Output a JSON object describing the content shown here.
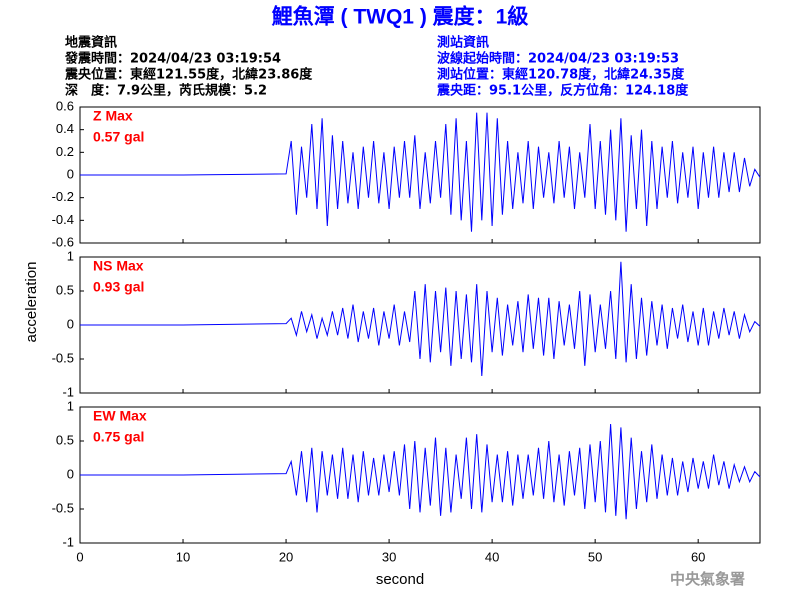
{
  "title": "鯉魚潭 ( TWQ1 ) 震度：1級",
  "event_info": [
    "地震資訊",
    "發震時間：2024/04/23 03:19:54",
    "震央位置：東經121.55度，北緯23.86度",
    "深　度：7.9公里，芮氏規模：5.2"
  ],
  "station_info": [
    "測站資訊",
    "波線起始時間：2024/04/23 03:19:53",
    "測站位置：東經120.78度，北緯24.35度",
    "震央距：95.1公里，反方位角：124.18度"
  ],
  "ylabel": "acceleration",
  "xlabel": "second",
  "footer": "中央氣象署",
  "chart_data": [
    {
      "type": "line",
      "label": "Z Max",
      "max_label": "0.57 gal",
      "color": "#0000ff",
      "label_color": "#ff0000",
      "xlim": [
        0,
        66
      ],
      "xticks": [
        0,
        10,
        20,
        30,
        40,
        50,
        60
      ],
      "ylim": [
        -0.6,
        0.6
      ],
      "yticks": [
        -0.6,
        -0.4,
        -0.2,
        0,
        0.2,
        0.4,
        0.6
      ],
      "x": [
        0,
        10,
        20,
        20.5,
        21,
        21.5,
        22,
        22.5,
        23,
        23.5,
        24,
        24.5,
        25,
        25.5,
        26,
        26.5,
        27,
        27.5,
        28,
        28.5,
        29,
        29.5,
        30,
        30.5,
        31,
        31.5,
        32,
        32.5,
        33,
        33.5,
        34,
        34.5,
        35,
        35.5,
        36,
        36.5,
        37,
        37.5,
        38,
        38.5,
        39,
        39.5,
        40,
        40.5,
        41,
        41.5,
        42,
        42.5,
        43,
        43.5,
        44,
        44.5,
        45,
        45.5,
        46,
        46.5,
        47,
        47.5,
        48,
        48.5,
        49,
        49.5,
        50,
        50.5,
        51,
        51.5,
        52,
        52.5,
        53,
        53.5,
        54,
        54.5,
        55,
        55.5,
        56,
        56.5,
        57,
        57.5,
        58,
        58.5,
        59,
        59.5,
        60,
        60.5,
        61,
        61.5,
        62,
        62.5,
        63,
        63.5,
        64,
        64.5,
        65,
        65.5,
        66
      ],
      "values": [
        0,
        0,
        0.01,
        0.3,
        -0.35,
        0.25,
        -0.2,
        0.45,
        -0.3,
        0.5,
        -0.45,
        0.35,
        -0.3,
        0.3,
        -0.25,
        0.2,
        -0.3,
        0.25,
        -0.2,
        0.3,
        -0.25,
        0.2,
        -0.3,
        0.25,
        -0.2,
        0.3,
        -0.2,
        0.35,
        -0.3,
        0.2,
        -0.25,
        0.3,
        -0.2,
        0.45,
        -0.35,
        0.5,
        -0.4,
        0.3,
        -0.5,
        0.55,
        -0.4,
        0.55,
        -0.45,
        0.5,
        -0.35,
        0.3,
        -0.3,
        0.2,
        -0.25,
        0.3,
        -0.3,
        0.25,
        -0.2,
        0.2,
        -0.25,
        0.3,
        -0.2,
        0.25,
        -0.3,
        0.2,
        -0.2,
        0.45,
        -0.3,
        0.3,
        -0.35,
        0.4,
        -0.4,
        0.5,
        -0.5,
        0.35,
        -0.3,
        0.4,
        -0.45,
        0.3,
        -0.3,
        0.25,
        -0.2,
        0.3,
        -0.25,
        0.2,
        -0.2,
        0.25,
        -0.3,
        0.2,
        -0.2,
        0.25,
        -0.2,
        0.2,
        -0.15,
        0.2,
        -0.15,
        0.15,
        -0.1,
        0.05,
        -0.02
      ]
    },
    {
      "type": "line",
      "label": "NS Max",
      "max_label": "0.93 gal",
      "color": "#0000ff",
      "label_color": "#ff0000",
      "xlim": [
        0,
        66
      ],
      "xticks": [
        0,
        10,
        20,
        30,
        40,
        50,
        60
      ],
      "ylim": [
        -1,
        1
      ],
      "yticks": [
        -1,
        -0.5,
        0,
        0.5,
        1
      ],
      "x": [
        0,
        10,
        20,
        20.5,
        21,
        21.5,
        22,
        22.5,
        23,
        23.5,
        24,
        24.5,
        25,
        25.5,
        26,
        26.5,
        27,
        27.5,
        28,
        28.5,
        29,
        29.5,
        30,
        30.5,
        31,
        31.5,
        32,
        32.5,
        33,
        33.5,
        34,
        34.5,
        35,
        35.5,
        36,
        36.5,
        37,
        37.5,
        38,
        38.5,
        39,
        39.5,
        40,
        40.5,
        41,
        41.5,
        42,
        42.5,
        43,
        43.5,
        44,
        44.5,
        45,
        45.5,
        46,
        46.5,
        47,
        47.5,
        48,
        48.5,
        49,
        49.5,
        50,
        50.5,
        51,
        51.5,
        52,
        52.5,
        53,
        53.5,
        54,
        54.5,
        55,
        55.5,
        56,
        56.5,
        57,
        57.5,
        58,
        58.5,
        59,
        59.5,
        60,
        60.5,
        61,
        61.5,
        62,
        62.5,
        63,
        63.5,
        64,
        64.5,
        65,
        65.5,
        66
      ],
      "values": [
        0,
        0,
        0.02,
        0.1,
        -0.15,
        0.2,
        -0.1,
        0.15,
        -0.2,
        0.1,
        -0.15,
        0.2,
        -0.15,
        0.25,
        -0.2,
        0.3,
        -0.25,
        0.2,
        -0.2,
        0.25,
        -0.3,
        0.2,
        -0.2,
        0.3,
        -0.3,
        0.2,
        -0.25,
        0.5,
        -0.5,
        0.6,
        -0.55,
        0.5,
        -0.4,
        0.55,
        -0.6,
        0.5,
        -0.5,
        0.45,
        -0.55,
        0.6,
        -0.75,
        0.5,
        -0.4,
        0.4,
        -0.45,
        0.3,
        -0.3,
        0.35,
        -0.4,
        0.45,
        -0.35,
        0.4,
        -0.45,
        0.4,
        -0.5,
        0.35,
        -0.3,
        0.3,
        -0.35,
        0.5,
        -0.6,
        0.45,
        -0.4,
        0.3,
        -0.35,
        0.5,
        -0.5,
        0.93,
        -0.55,
        0.6,
        -0.5,
        0.4,
        -0.45,
        0.35,
        -0.3,
        0.3,
        -0.35,
        0.25,
        -0.2,
        0.3,
        -0.25,
        0.2,
        -0.3,
        0.25,
        -0.3,
        0.2,
        -0.2,
        0.25,
        -0.15,
        0.2,
        -0.2,
        0.15,
        -0.1,
        0.05,
        -0.02
      ]
    },
    {
      "type": "line",
      "label": "EW Max",
      "max_label": "0.75 gal",
      "color": "#0000ff",
      "label_color": "#ff0000",
      "xlim": [
        0,
        66
      ],
      "xticks": [
        0,
        10,
        20,
        30,
        40,
        50,
        60
      ],
      "ylim": [
        -1,
        1
      ],
      "yticks": [
        -1,
        -0.5,
        0,
        0.5,
        1
      ],
      "x": [
        0,
        10,
        20,
        20.5,
        21,
        21.5,
        22,
        22.5,
        23,
        23.5,
        24,
        24.5,
        25,
        25.5,
        26,
        26.5,
        27,
        27.5,
        28,
        28.5,
        29,
        29.5,
        30,
        30.5,
        31,
        31.5,
        32,
        32.5,
        33,
        33.5,
        34,
        34.5,
        35,
        35.5,
        36,
        36.5,
        37,
        37.5,
        38,
        38.5,
        39,
        39.5,
        40,
        40.5,
        41,
        41.5,
        42,
        42.5,
        43,
        43.5,
        44,
        44.5,
        45,
        45.5,
        46,
        46.5,
        47,
        47.5,
        48,
        48.5,
        49,
        49.5,
        50,
        50.5,
        51,
        51.5,
        52,
        52.5,
        53,
        53.5,
        54,
        54.5,
        55,
        55.5,
        56,
        56.5,
        57,
        57.5,
        58,
        58.5,
        59,
        59.5,
        60,
        60.5,
        61,
        61.5,
        62,
        62.5,
        63,
        63.5,
        64,
        64.5,
        65,
        65.5,
        66
      ],
      "values": [
        0,
        0,
        0.02,
        0.2,
        -0.3,
        0.35,
        -0.4,
        0.4,
        -0.55,
        0.35,
        -0.3,
        0.3,
        -0.35,
        0.4,
        -0.35,
        0.3,
        -0.4,
        0.35,
        -0.3,
        0.25,
        -0.3,
        0.3,
        -0.25,
        0.35,
        -0.3,
        0.45,
        -0.5,
        0.5,
        -0.55,
        0.4,
        -0.45,
        0.55,
        -0.6,
        0.4,
        -0.55,
        0.3,
        -0.35,
        0.55,
        -0.5,
        0.6,
        -0.55,
        0.45,
        -0.4,
        0.3,
        -0.4,
        0.35,
        -0.45,
        0.3,
        -0.35,
        0.3,
        -0.3,
        0.4,
        -0.35,
        0.5,
        -0.4,
        0.3,
        -0.45,
        0.35,
        -0.3,
        0.4,
        -0.5,
        0.45,
        -0.4,
        0.5,
        -0.55,
        0.75,
        -0.6,
        0.7,
        -0.65,
        0.55,
        -0.5,
        0.35,
        -0.4,
        0.45,
        -0.35,
        0.3,
        -0.3,
        0.25,
        -0.3,
        0.2,
        -0.25,
        0.25,
        -0.2,
        0.2,
        -0.2,
        0.3,
        -0.15,
        0.2,
        -0.2,
        0.15,
        -0.1,
        0.12,
        -0.1,
        0.05,
        -0.03
      ]
    }
  ]
}
